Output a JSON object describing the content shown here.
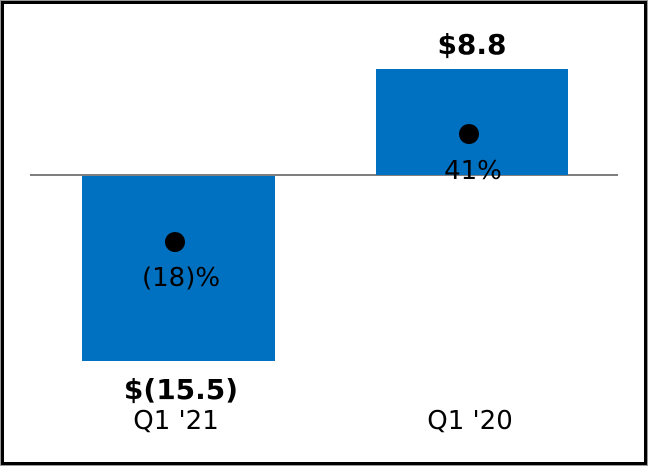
{
  "chart": {
    "bar_color": "#0070C0",
    "zero_line_color": "#7f7f7f",
    "dot_color": "#000000",
    "border_color": "#000000"
  },
  "chart_data": {
    "type": "bar",
    "categories": [
      "Q1 '21",
      "Q1 '20"
    ],
    "series": [
      {
        "name": "dollar-value",
        "type": "bar",
        "values": [
          -15.5,
          8.8
        ],
        "labels": [
          "$(15.5)",
          "$8.8"
        ],
        "color": "#0070C0"
      },
      {
        "name": "percent-marker",
        "type": "scatter",
        "values": [
          -18,
          41
        ],
        "labels": [
          "(18)%",
          "41%"
        ],
        "color": "#000000"
      }
    ],
    "title": "",
    "xlabel": "",
    "ylabel": "",
    "ylim": [
      -21,
      9.5
    ],
    "grid": false,
    "legend": false,
    "zero_line": true
  }
}
